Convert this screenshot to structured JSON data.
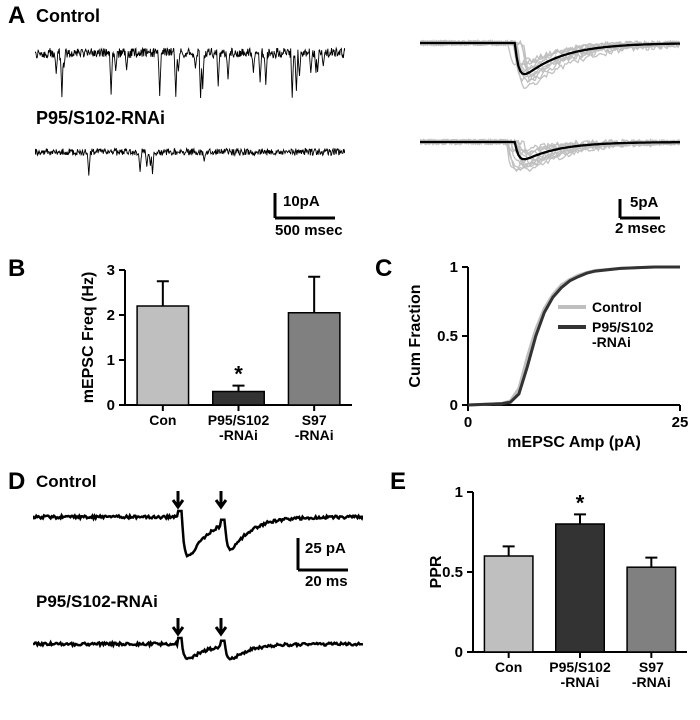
{
  "panelA": {
    "label": "A",
    "condition1": "Control",
    "condition2": "P95/S102-RNAi",
    "leftScale": {
      "y": "10pA",
      "x": "500 msec"
    },
    "rightScale": {
      "y": "5pA",
      "x": "2 msec"
    },
    "trace_color": "#000000",
    "overlay_color": "#c0c0c0",
    "bg": "#ffffff"
  },
  "panelB": {
    "label": "B",
    "ylabel": "mEPSC Freq (Hz)",
    "categories": [
      "Con",
      "P95/S102\n-RNAi",
      "S97\n-RNAi"
    ],
    "values": [
      2.2,
      0.3,
      2.05
    ],
    "errors": [
      0.55,
      0.13,
      0.8
    ],
    "colors": [
      "#bfbfbf",
      "#333333",
      "#808080"
    ],
    "ylim": [
      0,
      3
    ],
    "yticks": [
      0,
      1,
      2,
      3
    ],
    "axis_color": "#000000",
    "bar_stroke": "#000000",
    "star": "*",
    "star_on": 1
  },
  "panelC": {
    "label": "C",
    "xlabel": "mEPSC Amp (pA)",
    "ylabel": "Cum Fraction",
    "xlim": [
      0,
      25
    ],
    "ylim": [
      0,
      1
    ],
    "xticks": [
      0,
      25
    ],
    "yticks": [
      0,
      0.5,
      1
    ],
    "legend": [
      {
        "name": "Control",
        "color": "#bfbfbf"
      },
      {
        "name": "P95/S102\n-RNAi",
        "color": "#333333"
      }
    ],
    "curve1_x": [
      0,
      4,
      5,
      6,
      7,
      8,
      9,
      10,
      11,
      12,
      13,
      14,
      15,
      18,
      22,
      25
    ],
    "curve1_y": [
      0,
      0.01,
      0.03,
      0.12,
      0.35,
      0.55,
      0.7,
      0.8,
      0.87,
      0.91,
      0.94,
      0.96,
      0.975,
      0.99,
      1,
      1
    ],
    "curve2_x": [
      0,
      4,
      5,
      6,
      7,
      8,
      9,
      10,
      11,
      12,
      13,
      14,
      15,
      18,
      22,
      25
    ],
    "curve2_y": [
      0,
      0.01,
      0.02,
      0.08,
      0.28,
      0.5,
      0.67,
      0.78,
      0.85,
      0.9,
      0.93,
      0.955,
      0.97,
      0.99,
      1,
      1
    ]
  },
  "panelD": {
    "label": "D",
    "condition1": "Control",
    "condition2": "P95/S102-RNAi",
    "scale": {
      "y": "25 pA",
      "x": "20 ms"
    },
    "trace_color": "#000000"
  },
  "panelE": {
    "label": "E",
    "ylabel": "PPR",
    "categories": [
      "Con",
      "P95/S102\n-RNAi",
      "S97\n-RNAi"
    ],
    "values": [
      0.6,
      0.8,
      0.53
    ],
    "errors": [
      0.06,
      0.06,
      0.06
    ],
    "colors": [
      "#bfbfbf",
      "#333333",
      "#808080"
    ],
    "ylim": [
      0,
      1.0
    ],
    "yticks": [
      0,
      0.5,
      1.0
    ],
    "axis_color": "#000000",
    "bar_stroke": "#000000",
    "star": "*",
    "star_on": 1
  }
}
